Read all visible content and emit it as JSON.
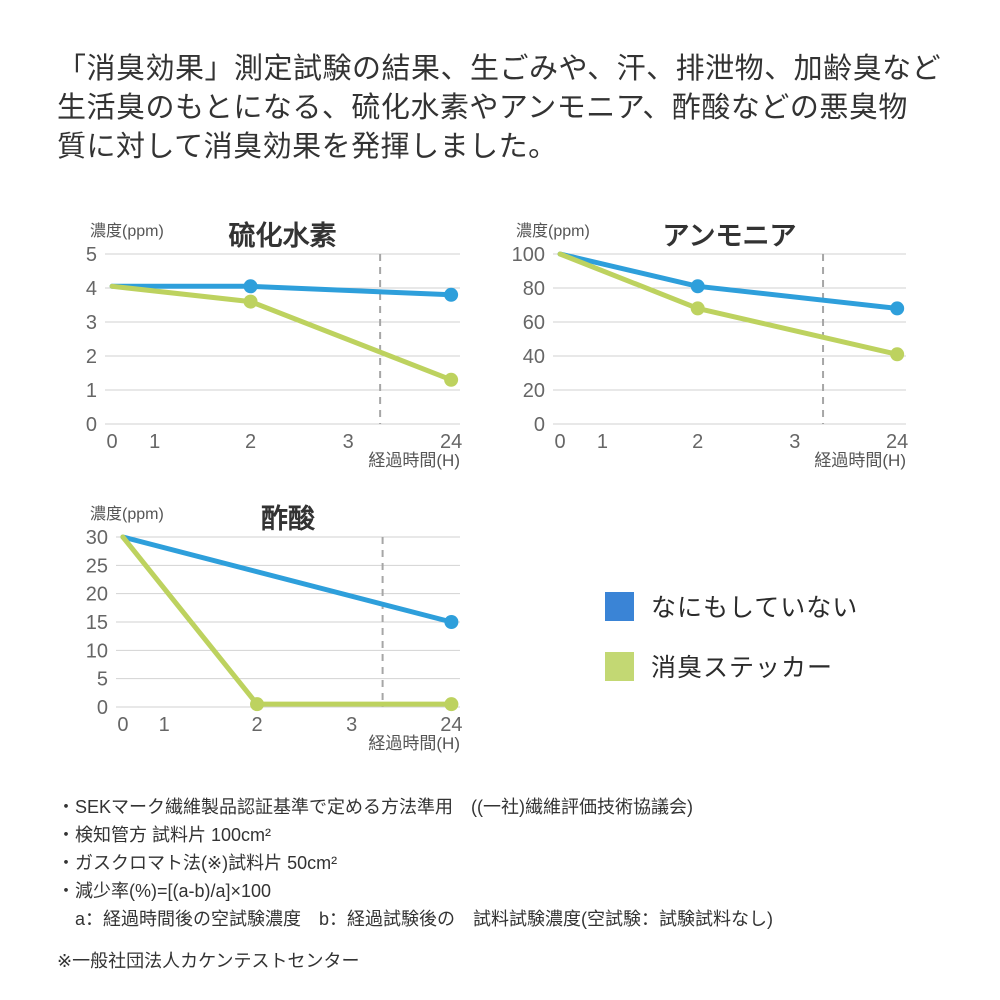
{
  "page": {
    "background": "#ffffff"
  },
  "header": {
    "lines": [
      "「消臭効果」測定試験の結果、生ごみや、汗、排泄物、加齢臭など",
      "生活臭のもとになる、硫化水素やアンモニア、酢酸などの悪臭物",
      "質に対して消臭効果を発揮しました。"
    ]
  },
  "legend": {
    "items": [
      {
        "label": "なにもしていない",
        "color": "#3A84D6"
      },
      {
        "label": "消臭ステッカー",
        "color": "#C3D873"
      }
    ]
  },
  "footer": {
    "notes": [
      "・SEKマーク繊維製品認証基準で定める方法準用　((一社)繊維評価技術協議会)",
      "・検知管方 試料片 100cm²",
      "・ガスクロマト法(※)試料片 50cm²",
      "・減少率(%)=[(a-b)/a]×100",
      "　a：経過時間後の空試験濃度　b：経過試験後の　試料試験濃度(空試験：試験試料なし)"
    ],
    "source": "※一般社団法人カケンテストセンター"
  },
  "chart_data": [
    {
      "type": "line",
      "title": "硫化水素",
      "ylabel": "濃度(ppm)",
      "xlabel": "経過時間(H)",
      "x_categories": [
        "0",
        "1",
        "2",
        "3",
        "24"
      ],
      "x_positions": [
        0.02,
        0.14,
        0.41,
        0.685,
        0.975
      ],
      "y_ticks": [
        0,
        1,
        2,
        3,
        4,
        5
      ],
      "ylim": [
        0,
        5
      ],
      "dashed_line_x": 0.775,
      "grid": "horizontal",
      "colors": {
        "grid": "#D2D2D2",
        "dashed": "#A6A6A6",
        "tick_text": "#666666",
        "label_text": "#555555",
        "title_text": "#333333"
      },
      "series": [
        {
          "name": "なにもしていない",
          "color": "#2E9FDB",
          "points": [
            [
              0,
              4.05
            ],
            [
              2,
              4.05
            ],
            [
              24,
              3.8
            ]
          ],
          "dots": [
            [
              2,
              4.05
            ],
            [
              24,
              3.8
            ]
          ]
        },
        {
          "name": "消臭ステッカー",
          "color": "#BDD25F",
          "points": [
            [
              0,
              4.05
            ],
            [
              2,
              3.6
            ],
            [
              24,
              1.3
            ]
          ],
          "dots": [
            [
              2,
              3.6
            ],
            [
              24,
              1.3
            ]
          ]
        }
      ]
    },
    {
      "type": "line",
      "title": "アンモニア",
      "ylabel": "濃度(ppm)",
      "xlabel": "経過時間(H)",
      "x_categories": [
        "0",
        "1",
        "2",
        "3",
        "24"
      ],
      "x_positions": [
        0.02,
        0.14,
        0.41,
        0.685,
        0.975
      ],
      "y_ticks": [
        0,
        20,
        40,
        60,
        80,
        100
      ],
      "ylim": [
        0,
        100
      ],
      "dashed_line_x": 0.765,
      "grid": "horizontal",
      "colors": {
        "grid": "#D2D2D2",
        "dashed": "#A6A6A6",
        "tick_text": "#666666",
        "label_text": "#555555",
        "title_text": "#333333"
      },
      "series": [
        {
          "name": "なにもしていない",
          "color": "#2E9FDB",
          "points": [
            [
              0,
              100
            ],
            [
              2,
              81
            ],
            [
              24,
              68
            ]
          ],
          "dots": [
            [
              2,
              81
            ],
            [
              24,
              68
            ]
          ]
        },
        {
          "name": "消臭ステッカー",
          "color": "#BDD25F",
          "points": [
            [
              0,
              100
            ],
            [
              2,
              68
            ],
            [
              24,
              41
            ]
          ],
          "dots": [
            [
              2,
              68
            ],
            [
              24,
              41
            ]
          ]
        }
      ]
    },
    {
      "type": "line",
      "title": "酢酸",
      "ylabel": "濃度(ppm)",
      "xlabel": "経過時間(H)",
      "x_categories": [
        "0",
        "1",
        "2",
        "3",
        "24"
      ],
      "x_positions": [
        0.02,
        0.14,
        0.41,
        0.685,
        0.975
      ],
      "y_ticks": [
        0,
        5,
        10,
        15,
        20,
        25,
        30
      ],
      "ylim": [
        0,
        30
      ],
      "dashed_line_x": 0.775,
      "grid": "horizontal",
      "colors": {
        "grid": "#D2D2D2",
        "dashed": "#A6A6A6",
        "tick_text": "#666666",
        "label_text": "#555555",
        "title_text": "#333333"
      },
      "series": [
        {
          "name": "なにもしていない",
          "color": "#2E9FDB",
          "points": [
            [
              0,
              30
            ],
            [
              24,
              15
            ]
          ],
          "dots": [
            [
              24,
              15
            ]
          ]
        },
        {
          "name": "消臭ステッカー",
          "color": "#BDD25F",
          "points": [
            [
              0,
              30
            ],
            [
              2,
              0.5
            ],
            [
              24,
              0.5
            ]
          ],
          "dots": [
            [
              2,
              0.5
            ],
            [
              24,
              0.5
            ]
          ]
        }
      ]
    }
  ]
}
